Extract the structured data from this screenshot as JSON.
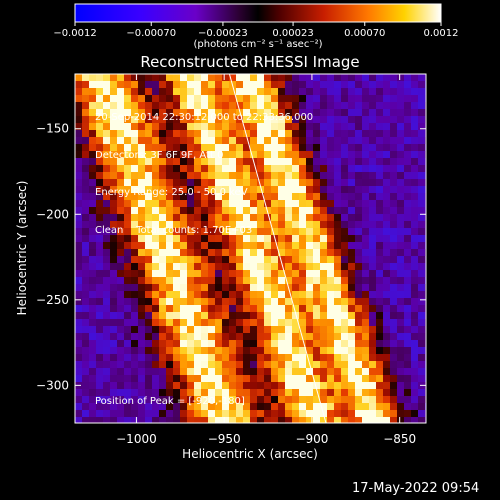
{
  "colorbar": {
    "tick_labels": [
      "-0.0012",
      "-0.00070",
      "-0.00023",
      "0.00023",
      "0.00070",
      "0.0012"
    ],
    "unit_label": "(photons cm⁻² s⁻¹ asec⁻²)",
    "range": [
      -0.0012,
      0.0012
    ]
  },
  "chart_data": {
    "type": "heatmap",
    "title": "Reconstructed RHESSI Image",
    "xlabel": "Heliocentric X (arcsec)",
    "ylabel": "Heliocentric Y (arcsec)",
    "xlim": [
      -1035,
      -835
    ],
    "ylim": [
      -322,
      -118
    ],
    "x_ticks": [
      -1000,
      -950,
      -900,
      -850
    ],
    "y_ticks": [
      -150,
      -200,
      -250,
      -300
    ],
    "x_tick_labels": [
      "−1000",
      "−950",
      "−900",
      "−850"
    ],
    "y_tick_labels": [
      "−150",
      "−200",
      "−250",
      "−300"
    ],
    "colormap": "red temperature (blue negative → black → red/yellow/white positive)",
    "bright_band_centers_x_at_top": [
      -1020,
      -970,
      -935
    ],
    "band_slope_arcsec_x_per_y": 0.35,
    "limb_line": {
      "from": [
        -947,
        -118
      ],
      "to": [
        -892,
        -322
      ]
    },
    "annotations": [
      "20-Sep-2014 22:30:12.000 to 22:33:36.000",
      "Detectors: 3F 6F 9F, Att 0",
      "Energy Range: 25.0 - 50.0 keV",
      "Clean    Total counts: 1.70E+03"
    ],
    "peak_text": "Position of Peak = [-920,-180]"
  },
  "timestamp": "17-May-2022 09:54"
}
